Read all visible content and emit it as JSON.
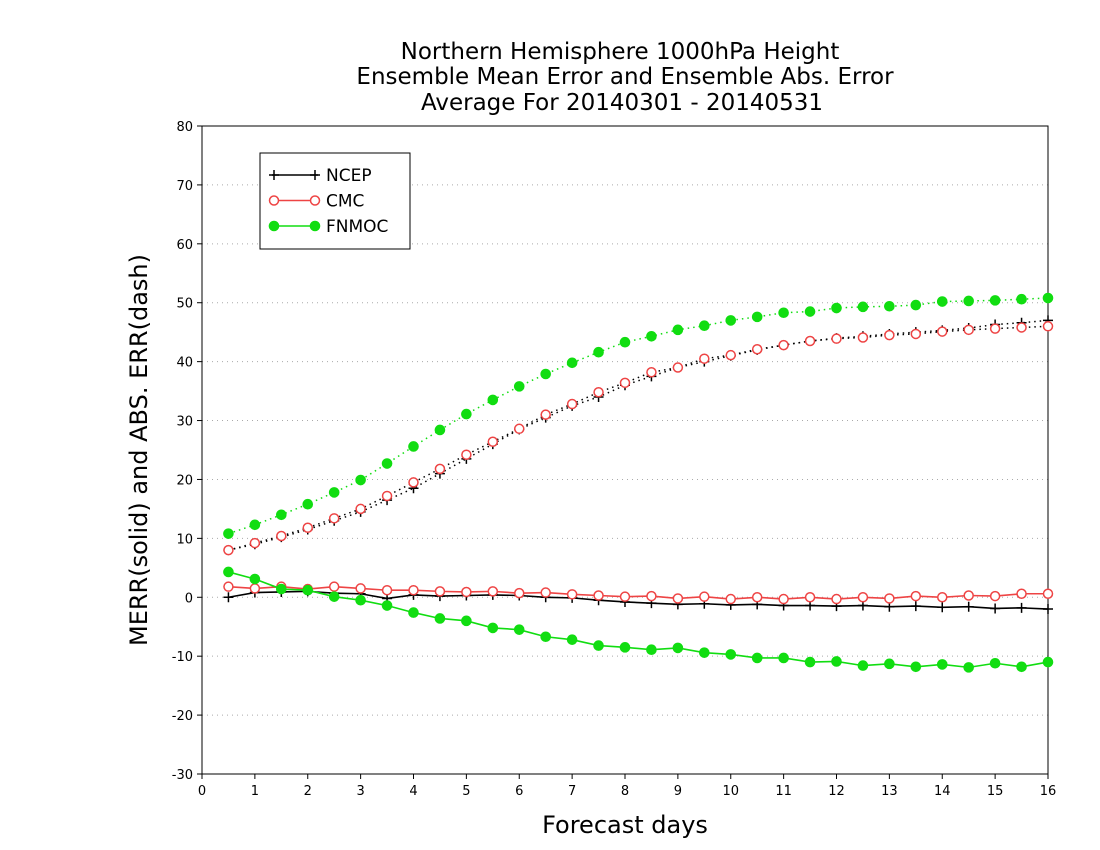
{
  "chart_data": {
    "type": "line",
    "title_lines": [
      "Northern Hemisphere 1000hPa Height",
      "Ensemble Mean Error and Ensemble Abs. Error",
      "Average For 20140301 - 20140531"
    ],
    "xlabel": "Forecast days",
    "ylabel": "MERR(solid) and ABS. ERR(dash)",
    "xlim": [
      0,
      16
    ],
    "ylim": [
      -30,
      80
    ],
    "xticks": [
      0,
      1,
      2,
      3,
      4,
      5,
      6,
      7,
      8,
      9,
      10,
      11,
      12,
      13,
      14,
      15,
      16
    ],
    "yticks": [
      -30,
      -20,
      -10,
      0,
      10,
      20,
      30,
      40,
      50,
      60,
      70,
      80
    ],
    "x": [
      0.5,
      1,
      1.5,
      2,
      2.5,
      3,
      3.5,
      4,
      4.5,
      5,
      5.5,
      6,
      6.5,
      7,
      7.5,
      8,
      8.5,
      9,
      9.5,
      10,
      10.5,
      11,
      11.5,
      12,
      12.5,
      13,
      13.5,
      14,
      14.5,
      15,
      15.5,
      16
    ],
    "grid": "horizontal dotted",
    "legend_position": "top-left",
    "series": [
      {
        "name": "NCEP",
        "color": "#000000",
        "marker": "plus",
        "mean_error": [
          0.0,
          0.8,
          0.9,
          1.0,
          0.7,
          0.6,
          -0.2,
          0.4,
          0.2,
          0.3,
          0.4,
          0.3,
          0.0,
          -0.1,
          -0.5,
          -0.8,
          -1.0,
          -1.2,
          -1.1,
          -1.3,
          -1.2,
          -1.4,
          -1.4,
          -1.5,
          -1.4,
          -1.6,
          -1.5,
          -1.7,
          -1.6,
          -1.9,
          -1.8,
          -2.0
        ],
        "abs_error": [
          8.0,
          9.0,
          10.2,
          11.5,
          13.0,
          14.5,
          16.5,
          18.5,
          21.0,
          23.5,
          26.0,
          28.5,
          30.5,
          32.5,
          34.0,
          36.0,
          37.5,
          39.0,
          40.0,
          41.0,
          42.0,
          42.8,
          43.5,
          44.0,
          44.3,
          44.7,
          45.0,
          45.3,
          45.7,
          46.3,
          46.6,
          47.0
        ]
      },
      {
        "name": "CMC",
        "color": "#ee4444",
        "marker": "open-circle",
        "mean_error": [
          1.8,
          1.5,
          1.8,
          1.4,
          1.8,
          1.5,
          1.2,
          1.2,
          1.0,
          0.9,
          1.0,
          0.7,
          0.8,
          0.5,
          0.3,
          0.1,
          0.2,
          -0.2,
          0.1,
          -0.3,
          0.0,
          -0.3,
          0.0,
          -0.3,
          0.0,
          -0.2,
          0.2,
          0.0,
          0.3,
          0.2,
          0.6,
          0.6
        ],
        "abs_error": [
          8.0,
          9.2,
          10.4,
          11.8,
          13.4,
          15.0,
          17.2,
          19.5,
          21.8,
          24.2,
          26.4,
          28.6,
          31.0,
          32.8,
          34.8,
          36.4,
          38.2,
          39.0,
          40.5,
          41.1,
          42.1,
          42.8,
          43.5,
          43.9,
          44.1,
          44.5,
          44.7,
          45.1,
          45.4,
          45.6,
          45.8,
          46.0
        ]
      },
      {
        "name": "FNMOC",
        "color": "#11dd11",
        "marker": "filled-circle",
        "mean_error": [
          4.3,
          3.1,
          1.4,
          1.2,
          0.1,
          -0.5,
          -1.4,
          -2.6,
          -3.6,
          -4.0,
          -5.2,
          -5.5,
          -6.7,
          -7.2,
          -8.2,
          -8.5,
          -8.9,
          -8.6,
          -9.4,
          -9.7,
          -10.3,
          -10.3,
          -11.0,
          -10.9,
          -11.6,
          -11.3,
          -11.8,
          -11.4,
          -11.9,
          -11.2,
          -11.8,
          -11.0
        ],
        "abs_error": [
          10.8,
          12.3,
          14.0,
          15.8,
          17.8,
          19.9,
          22.7,
          25.6,
          28.4,
          31.1,
          33.5,
          35.8,
          37.9,
          39.8,
          41.6,
          43.3,
          44.3,
          45.4,
          46.1,
          47.0,
          47.6,
          48.3,
          48.5,
          49.1,
          49.3,
          49.4,
          49.6,
          50.2,
          50.3,
          50.4,
          50.6,
          50.8
        ]
      }
    ]
  }
}
